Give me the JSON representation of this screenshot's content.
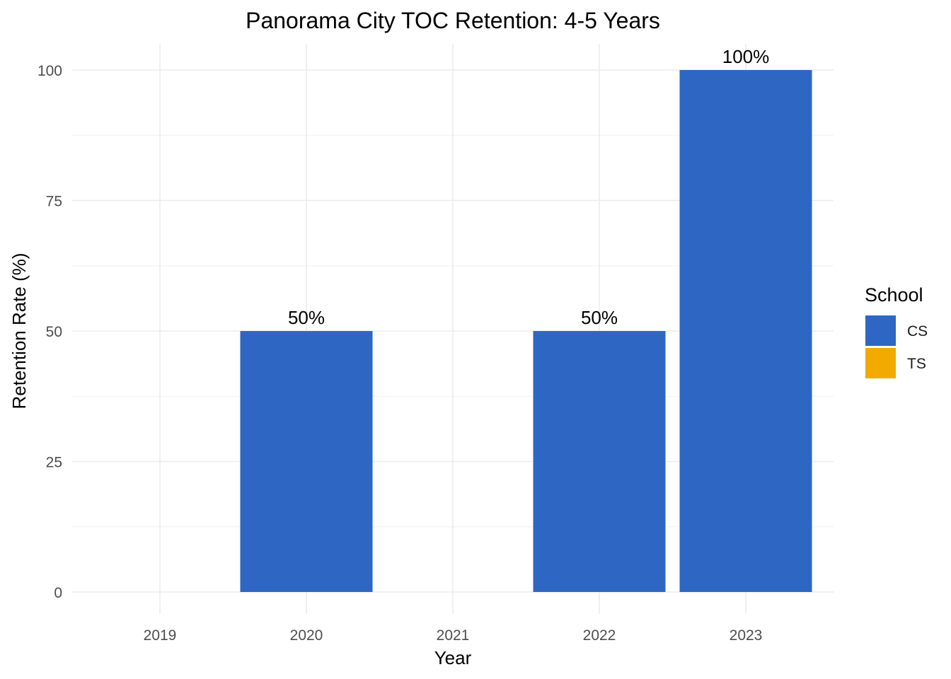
{
  "chart_data": {
    "type": "bar",
    "title": "Panorama City TOC Retention: 4-5 Years",
    "xlabel": "Year",
    "ylabel": "Retention Rate (%)",
    "categories": [
      "2019",
      "2020",
      "2021",
      "2022",
      "2023"
    ],
    "ylim": [
      0,
      100
    ],
    "yticks": [
      0,
      25,
      50,
      75,
      100
    ],
    "grid": true,
    "legend": {
      "title": "School",
      "position": "right",
      "entries": [
        {
          "name": "CS",
          "color": "#2E67C3"
        },
        {
          "name": "TS",
          "color": "#F2A900"
        }
      ]
    },
    "series": [
      {
        "name": "CS",
        "color": "#2E67C3",
        "values": [
          null,
          50,
          null,
          50,
          100
        ],
        "labels": [
          null,
          "50%",
          null,
          "50%",
          "100%"
        ]
      },
      {
        "name": "TS",
        "color": "#F2A900",
        "values": [
          null,
          null,
          null,
          null,
          null
        ],
        "labels": [
          null,
          null,
          null,
          null,
          null
        ]
      }
    ]
  }
}
